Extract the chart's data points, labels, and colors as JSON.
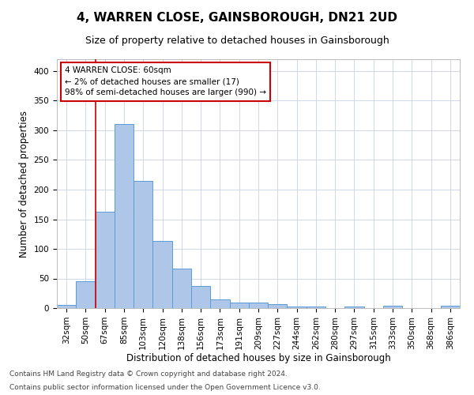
{
  "title": "4, WARREN CLOSE, GAINSBOROUGH, DN21 2UD",
  "subtitle": "Size of property relative to detached houses in Gainsborough",
  "xlabel": "Distribution of detached houses by size in Gainsborough",
  "ylabel": "Number of detached properties",
  "footnote1": "Contains HM Land Registry data © Crown copyright and database right 2024.",
  "footnote2": "Contains public sector information licensed under the Open Government Licence v3.0.",
  "categories": [
    "32sqm",
    "50sqm",
    "67sqm",
    "85sqm",
    "103sqm",
    "120sqm",
    "138sqm",
    "156sqm",
    "173sqm",
    "191sqm",
    "209sqm",
    "227sqm",
    "244sqm",
    "262sqm",
    "280sqm",
    "297sqm",
    "315sqm",
    "333sqm",
    "350sqm",
    "368sqm",
    "386sqm"
  ],
  "values": [
    5,
    46,
    163,
    311,
    214,
    114,
    67,
    38,
    15,
    10,
    10,
    7,
    3,
    3,
    0,
    3,
    0,
    4,
    0,
    0,
    4
  ],
  "bar_color": "#aec6e8",
  "bar_edge_color": "#5b9bd5",
  "grid_color": "#d0d8e8",
  "annotation_box_text": "4 WARREN CLOSE: 60sqm\n← 2% of detached houses are smaller (17)\n98% of semi-detached houses are larger (990) →",
  "annotation_box_color": "#ffffff",
  "annotation_box_edge": "#cc0000",
  "redline_x": 1.5,
  "redline_color": "#cc0000",
  "ylim": [
    0,
    420
  ],
  "yticks": [
    0,
    50,
    100,
    150,
    200,
    250,
    300,
    350,
    400
  ],
  "title_fontsize": 11,
  "subtitle_fontsize": 9,
  "axis_label_fontsize": 8.5,
  "tick_fontsize": 7.5,
  "footnote_fontsize": 6.5,
  "background_color": "#ffffff"
}
